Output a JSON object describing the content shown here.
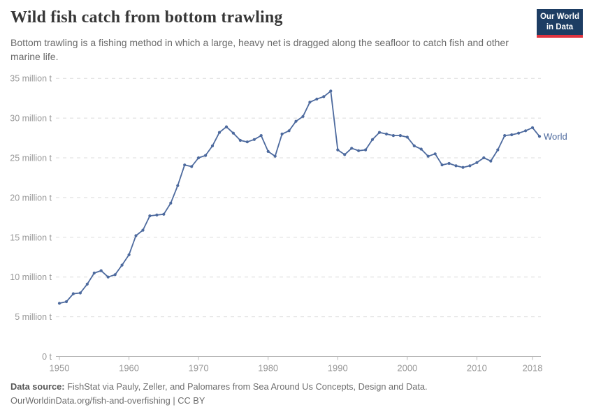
{
  "header": {
    "title": "Wild fish catch from bottom trawling",
    "subtitle": "Bottom trawling is a fishing method in which a large, heavy net is dragged along the seafloor to catch fish and other marine life.",
    "logo": {
      "line1": "Our World",
      "line2": "in Data"
    }
  },
  "chart_data": {
    "type": "line",
    "title": "Wild fish catch from bottom trawling",
    "xlabel": "",
    "ylabel": "",
    "unit": "million t",
    "xlim": [
      1950,
      2019
    ],
    "ylim": [
      0,
      35
    ],
    "grid": "horizontal-dashed",
    "legend_position": "end-of-line-label",
    "x": [
      1950,
      1951,
      1952,
      1953,
      1954,
      1955,
      1956,
      1957,
      1958,
      1959,
      1960,
      1961,
      1962,
      1963,
      1964,
      1965,
      1966,
      1967,
      1968,
      1969,
      1970,
      1971,
      1972,
      1973,
      1974,
      1975,
      1976,
      1977,
      1978,
      1979,
      1980,
      1981,
      1982,
      1983,
      1984,
      1985,
      1986,
      1987,
      1988,
      1989,
      1990,
      1991,
      1992,
      1993,
      1994,
      1995,
      1996,
      1997,
      1998,
      1999,
      2000,
      2001,
      2002,
      2003,
      2004,
      2005,
      2006,
      2007,
      2008,
      2009,
      2010,
      2011,
      2012,
      2013,
      2014,
      2015,
      2016,
      2017,
      2018,
      2019
    ],
    "series": [
      {
        "name": "World",
        "color": "#4d6a9e",
        "values": [
          6.7,
          6.9,
          7.9,
          8.0,
          9.1,
          10.5,
          10.8,
          10.0,
          10.3,
          11.5,
          12.8,
          15.2,
          15.9,
          17.7,
          17.8,
          17.9,
          19.3,
          21.5,
          24.1,
          23.9,
          25.0,
          25.3,
          26.5,
          28.2,
          28.9,
          28.1,
          27.2,
          27.0,
          27.3,
          27.8,
          25.8,
          25.2,
          28.0,
          28.4,
          29.6,
          30.2,
          32.0,
          32.4,
          32.7,
          33.4,
          26.0,
          25.4,
          26.2,
          25.9,
          26.0,
          27.3,
          28.2,
          28.0,
          27.8,
          27.8,
          27.6,
          26.5,
          26.1,
          25.2,
          25.5,
          24.1,
          24.3,
          24.0,
          23.8,
          24.0,
          24.4,
          25.0,
          24.6,
          26.0,
          27.8,
          27.9,
          28.1,
          28.4,
          28.8,
          27.7
        ]
      }
    ],
    "x_ticks": [
      1950,
      1960,
      1970,
      1980,
      1990,
      2000,
      2010,
      2018
    ],
    "y_ticks": [
      {
        "value": 0,
        "label": "0 t"
      },
      {
        "value": 5,
        "label": "5 million t"
      },
      {
        "value": 10,
        "label": "10 million t"
      },
      {
        "value": 15,
        "label": "15 million t"
      },
      {
        "value": 20,
        "label": "20 million t"
      },
      {
        "value": 25,
        "label": "25 million t"
      },
      {
        "value": 30,
        "label": "30 million t"
      },
      {
        "value": 35,
        "label": "35 million t"
      }
    ],
    "end_label": "World"
  },
  "footer": {
    "datasource_label": "Data source:",
    "datasource_text": "FishStat via Pauly, Zeller, and Palomares from Sea Around Us Concepts, Design and Data.",
    "url": "OurWorldinData.org/fish-and-overfishing",
    "separator": "|",
    "license": "CC BY"
  },
  "colors": {
    "line": "#4d6a9e",
    "gridline": "#dcdcdc",
    "axis": "#b9b9b9",
    "tick_text": "#999999",
    "title_text": "#373737",
    "subtitle_text": "#6b6b6b",
    "logo_bg": "#1d3d63",
    "logo_accent": "#e0333f"
  }
}
